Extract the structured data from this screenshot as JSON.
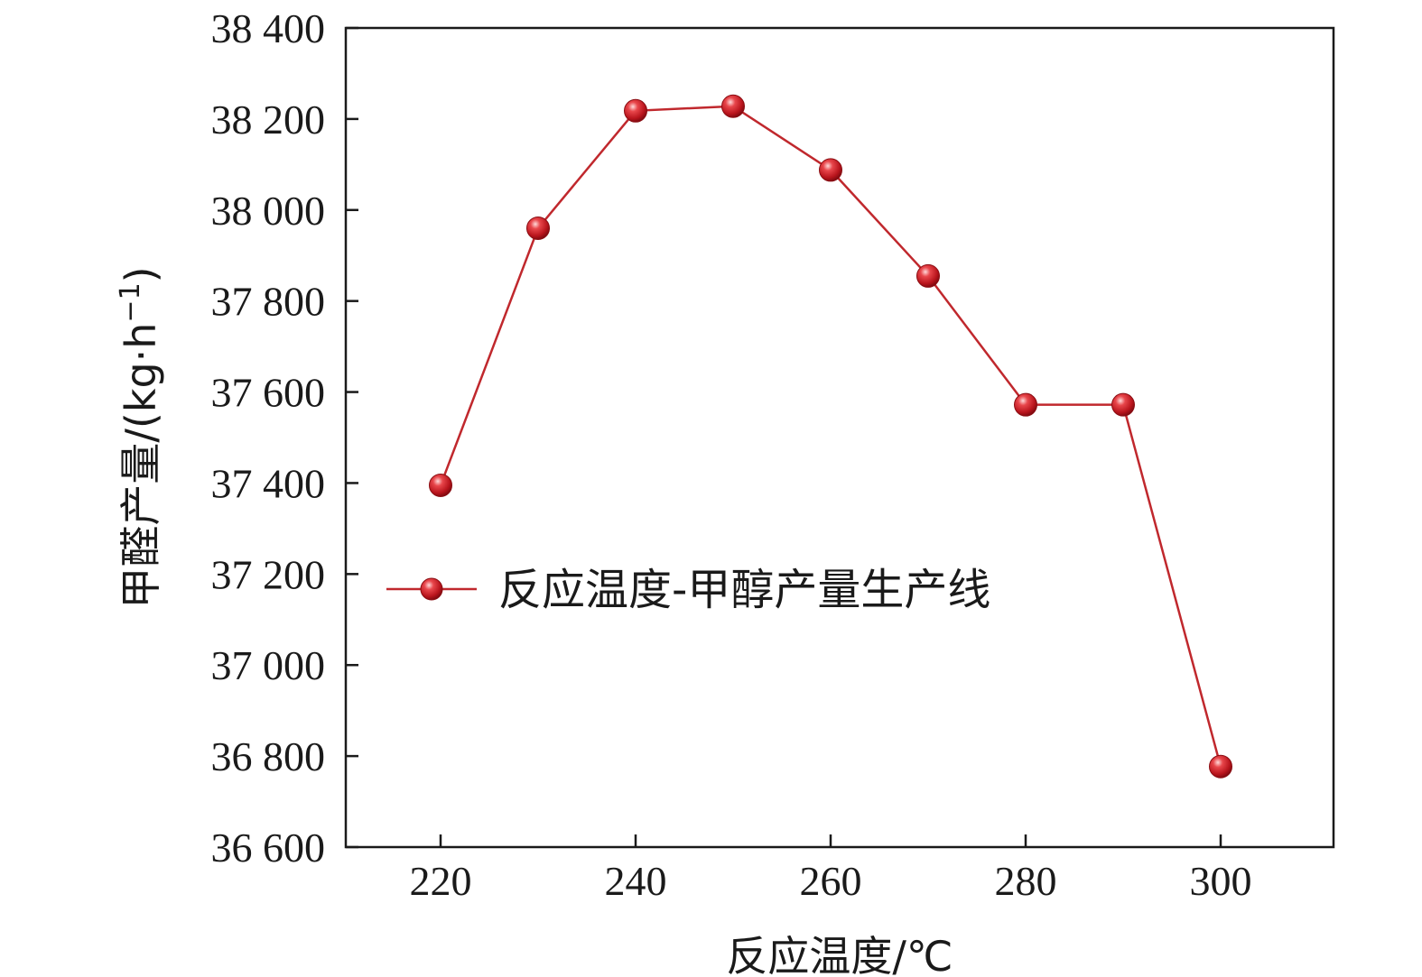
{
  "chart_data": {
    "type": "line",
    "xlabel": "反应温度/℃",
    "ylabel_prefix": "甲醛产量/(kg·h",
    "ylabel_sup": "−1",
    "ylabel_suffix": ")",
    "xlim": [
      210,
      310
    ],
    "ylim": [
      36600,
      38400
    ],
    "xticks": [
      220,
      240,
      260,
      280,
      300
    ],
    "xtick_labels": [
      "220",
      "240",
      "260",
      "280",
      "300"
    ],
    "yticks": [
      36600,
      36800,
      37000,
      37200,
      37400,
      37600,
      37800,
      38000,
      38200,
      38400
    ],
    "ytick_labels": [
      "36 600",
      "36 800",
      "37 000",
      "37 200",
      "37 400",
      "37 600",
      "37 800",
      "38 000",
      "38 200",
      "38 400"
    ],
    "legend_position": "center-left",
    "grid": false,
    "series": [
      {
        "name": "反应温度-甲醇产量生产线",
        "color": "#c0282d",
        "x": [
          220,
          230,
          240,
          250,
          260,
          270,
          280,
          290,
          300
        ],
        "y": [
          37395,
          37960,
          38218,
          38228,
          38088,
          37855,
          37572,
          37572,
          36777
        ]
      }
    ]
  }
}
